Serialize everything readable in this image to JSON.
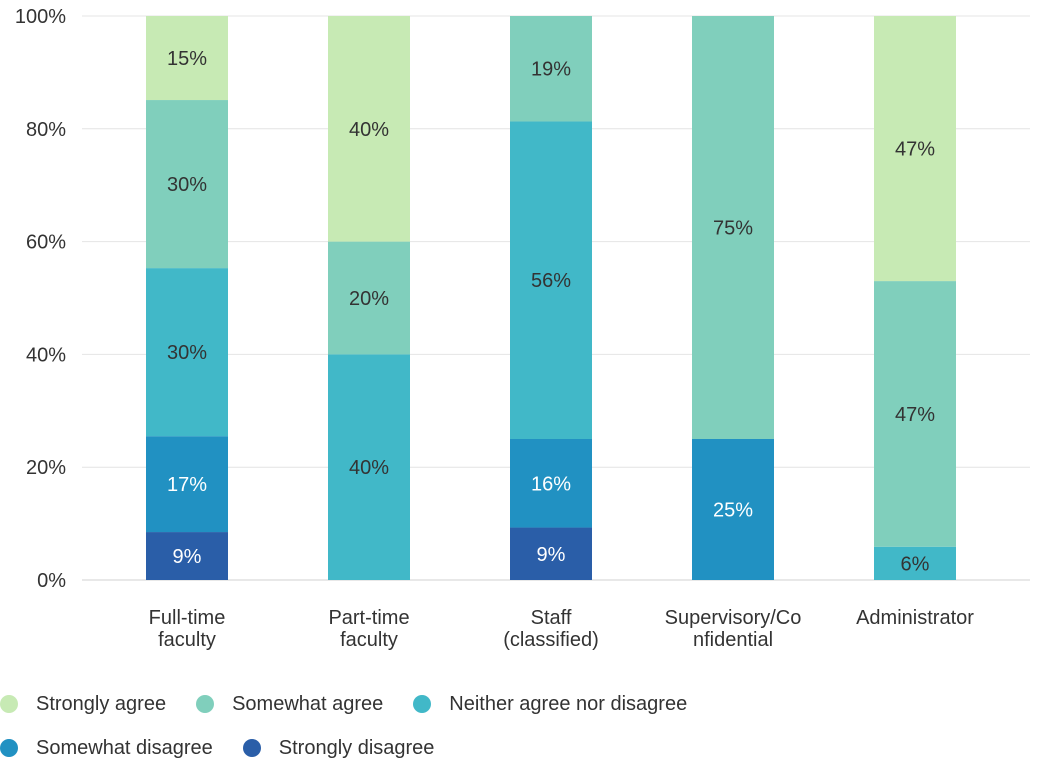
{
  "chart_data": {
    "type": "bar",
    "stacked": true,
    "title": "",
    "xlabel": "",
    "ylabel": "",
    "ylim": [
      0,
      100
    ],
    "yticks": [
      "0%",
      "20%",
      "40%",
      "60%",
      "80%",
      "100%"
    ],
    "grid": true,
    "legend_position": "bottom",
    "categories": [
      [
        "Full-time",
        "faculty"
      ],
      [
        "Part-time",
        "faculty"
      ],
      [
        "Staff",
        "(classified)"
      ],
      [
        "Supervisory/Co",
        "nfidential"
      ],
      [
        "Administrator"
      ]
    ],
    "series": [
      {
        "name": "Strongly disagree",
        "color": "#2a5ea8",
        "values": [
          8.5,
          0,
          9.3,
          0,
          0
        ],
        "labels": [
          "9%",
          "",
          "9%",
          "",
          ""
        ]
      },
      {
        "name": "Somewhat disagree",
        "color": "#2191c2",
        "values": [
          17.0,
          0,
          15.7,
          25.0,
          0
        ],
        "labels": [
          "17%",
          "",
          "16%",
          "25%",
          ""
        ]
      },
      {
        "name": "Neither agree nor disagree",
        "color": "#41b8c8",
        "values": [
          29.8,
          40.0,
          56.3,
          0,
          5.9
        ],
        "labels": [
          "30%",
          "40%",
          "56%",
          "",
          "6%"
        ]
      },
      {
        "name": "Somewhat agree",
        "color": "#80cfbc",
        "values": [
          29.8,
          20.0,
          18.7,
          75.0,
          47.1
        ],
        "labels": [
          "30%",
          "20%",
          "19%",
          "75%",
          "47%"
        ]
      },
      {
        "name": "Strongly agree",
        "color": "#c7eab4",
        "values": [
          14.9,
          40.0,
          0,
          0,
          47.0
        ],
        "labels": [
          "15%",
          "40%",
          "",
          "",
          "47%"
        ]
      }
    ],
    "legend_rows": [
      [
        "Strongly agree",
        "Somewhat agree",
        "Neither agree nor disagree"
      ],
      [
        "Somewhat disagree",
        "Strongly disagree"
      ]
    ]
  }
}
